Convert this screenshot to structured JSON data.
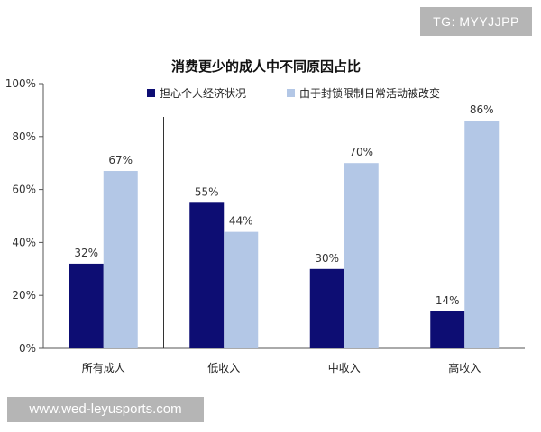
{
  "watermark": {
    "tg_label": "TG: MYYJJPP",
    "url": "www.wed-leyusports.com"
  },
  "chart_data": {
    "type": "bar",
    "title": "消费更少的成人中不同原因占比",
    "categories": [
      "所有成人",
      "低收入",
      "中收入",
      "高收入"
    ],
    "series": [
      {
        "name": "担心个人经济状况",
        "values": [
          32,
          55,
          30,
          14
        ],
        "color": "#0d0d73"
      },
      {
        "name": "由于封锁限制日常活动被改变",
        "values": [
          67,
          44,
          70,
          86
        ],
        "color": "#b3c7e6"
      }
    ],
    "ylim": [
      0,
      100
    ],
    "yticks": [
      0,
      20,
      40,
      60,
      80,
      100
    ],
    "ytick_labels": [
      "0%",
      "20%",
      "40%",
      "60%",
      "80%",
      "100%"
    ],
    "data_labels": [
      [
        "32%",
        "55%",
        "30%",
        "14%"
      ],
      [
        "67%",
        "44%",
        "70%",
        "86%"
      ]
    ],
    "legend_position": "top",
    "grid": false,
    "separator_after_category": 0
  }
}
